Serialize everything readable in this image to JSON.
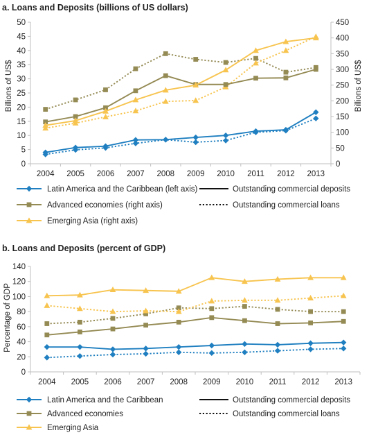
{
  "chart_data": [
    {
      "type": "line",
      "title": "a. Loans and Deposits (billions of US dollars)",
      "xlabel": "",
      "ylabel": "Billions of US$",
      "ylabel_right": "Billions of US$",
      "x": [
        "2004",
        "2005",
        "2006",
        "2007",
        "2008",
        "2009",
        "2010",
        "2011",
        "2012",
        "2013"
      ],
      "ylim": [
        0,
        50
      ],
      "yticks": [
        "0",
        "5",
        "10",
        "15",
        "20",
        "25",
        "30",
        "35",
        "40",
        "45",
        "50"
      ],
      "ylim_right": [
        0,
        450
      ],
      "yticks_right": [
        "0",
        "50",
        "100",
        "150",
        "200",
        "250",
        "300",
        "350",
        "400",
        "450"
      ],
      "grid": false,
      "legend_position": "bottom",
      "series": [
        {
          "region": "Latin America and the Caribbean (left axis)",
          "measure": "Outstanding commercial deposits",
          "axis": "left",
          "color": "#1f7fc0",
          "marker": "diamond",
          "dash": false,
          "values": [
            4.0,
            5.7,
            6.2,
            8.4,
            8.5,
            9.3,
            10.0,
            11.5,
            12.0,
            18.2
          ]
        },
        {
          "region": "Latin America and the Caribbean (left axis)",
          "measure": "Outstanding commercial loans",
          "axis": "left",
          "color": "#1f7fc0",
          "marker": "diamond",
          "dash": true,
          "values": [
            3.3,
            4.9,
            5.6,
            7.2,
            8.5,
            7.6,
            8.2,
            11.1,
            11.7,
            16.0
          ]
        },
        {
          "region": "Advanced economies (right axis)",
          "measure": "Outstanding commercial deposits",
          "axis": "right",
          "color": "#948a54",
          "marker": "square",
          "dash": false,
          "values": [
            133,
            150,
            178,
            232,
            280,
            252,
            252,
            272,
            273,
            300
          ]
        },
        {
          "region": "Advanced economies (right axis)",
          "measure": "Outstanding commercial loans",
          "axis": "right",
          "color": "#948a54",
          "marker": "square",
          "dash": true,
          "values": [
            173,
            203,
            235,
            302,
            350,
            332,
            322,
            335,
            291,
            306
          ]
        },
        {
          "region": "Emerging Asia (right axis)",
          "measure": "Outstanding commercial deposits",
          "axis": "right",
          "color": "#f7c44f",
          "marker": "triangle",
          "dash": false,
          "values": [
            122,
            137,
            167,
            203,
            234,
            250,
            298,
            360,
            388,
            400
          ]
        },
        {
          "region": "Emerging Asia (right axis)",
          "measure": "Outstanding commercial loans",
          "axis": "right",
          "color": "#f7c44f",
          "marker": "triangle",
          "dash": true,
          "values": [
            113,
            129,
            149,
            168,
            198,
            201,
            244,
            320,
            360,
            404
          ]
        }
      ],
      "legend": {
        "regions": [
          {
            "label": "Latin America and the Caribbean (left axis)",
            "color": "#1f7fc0",
            "marker": "diamond"
          },
          {
            "label": "Advanced economies (right axis)",
            "color": "#948a54",
            "marker": "square"
          },
          {
            "label": "Emerging Asia (right axis)",
            "color": "#f7c44f",
            "marker": "triangle"
          }
        ],
        "measures": [
          {
            "label": "Outstanding commercial deposits",
            "dash": false
          },
          {
            "label": "Outstanding commercial loans",
            "dash": true
          }
        ]
      }
    },
    {
      "type": "line",
      "title": "b. Loans and Deposits (percent of GDP)",
      "xlabel": "",
      "ylabel": "Percentage of GDP",
      "x": [
        "2004",
        "2005",
        "2006",
        "2007",
        "2008",
        "2009",
        "2010",
        "2011",
        "2012",
        "2013"
      ],
      "ylim": [
        0,
        140
      ],
      "yticks": [
        "0",
        "20",
        "40",
        "60",
        "80",
        "100",
        "120",
        "140"
      ],
      "grid": false,
      "legend_position": "bottom",
      "series": [
        {
          "region": "Latin America and the Caribbean",
          "measure": "Outstanding commercial deposits",
          "color": "#1f7fc0",
          "marker": "diamond",
          "dash": false,
          "values": [
            33,
            33,
            30,
            31,
            33,
            35,
            37,
            36,
            38,
            39
          ]
        },
        {
          "region": "Latin America and the Caribbean",
          "measure": "Outstanding commercial loans",
          "color": "#1f7fc0",
          "marker": "diamond",
          "dash": true,
          "values": [
            19,
            21,
            23,
            24,
            26,
            25,
            26,
            28,
            30,
            31
          ]
        },
        {
          "region": "Advanced economies",
          "measure": "Outstanding commercial deposits",
          "color": "#948a54",
          "marker": "square",
          "dash": false,
          "values": [
            49,
            53,
            57,
            62,
            66,
            72,
            68,
            64,
            65,
            67
          ]
        },
        {
          "region": "Advanced economies",
          "measure": "Outstanding commercial loans",
          "color": "#948a54",
          "marker": "square",
          "dash": true,
          "values": [
            64,
            66,
            71,
            77,
            85,
            84,
            87,
            83,
            80,
            80
          ]
        },
        {
          "region": "Emerging Asia",
          "measure": "Outstanding commercial deposits",
          "color": "#f7c44f",
          "marker": "triangle",
          "dash": false,
          "values": [
            101,
            102,
            109,
            108,
            107,
            125,
            120,
            123,
            125,
            125
          ]
        },
        {
          "region": "Emerging Asia",
          "measure": "Outstanding commercial loans",
          "color": "#f7c44f",
          "marker": "triangle",
          "dash": true,
          "values": [
            88,
            84,
            80,
            81,
            80,
            94,
            95,
            95,
            98,
            101
          ]
        }
      ],
      "legend": {
        "regions": [
          {
            "label": "Latin America and the Caribbean",
            "color": "#1f7fc0",
            "marker": "diamond"
          },
          {
            "label": "Advanced economies",
            "color": "#948a54",
            "marker": "square"
          },
          {
            "label": "Emerging Asia",
            "color": "#f7c44f",
            "marker": "triangle"
          }
        ],
        "measures": [
          {
            "label": "Outstanding commercial deposits",
            "dash": false
          },
          {
            "label": "Outstanding commercial loans",
            "dash": true
          }
        ]
      }
    }
  ]
}
